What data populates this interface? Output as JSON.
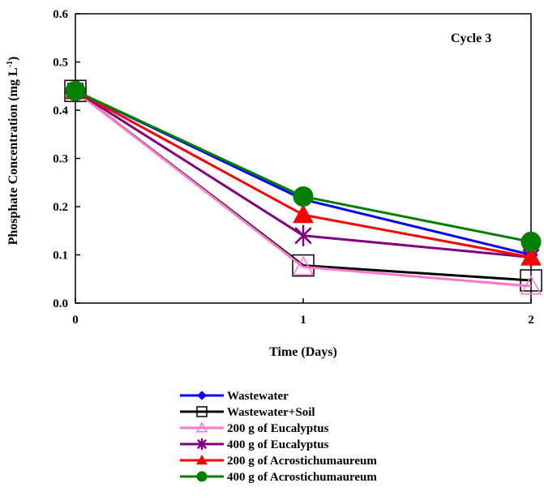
{
  "chart_data": {
    "type": "line",
    "title": "",
    "annotation": "Cycle 3",
    "xlabel": "Time (Days)",
    "ylabel": "Phosphate Concentration (mg L-1)",
    "ylabel_main": "Phosphate Concentration (mg L",
    "ylabel_sup": "-1",
    "ylabel_end": ")",
    "x": [
      0,
      1,
      2
    ],
    "xlim": [
      0,
      2
    ],
    "ylim": [
      0,
      0.6
    ],
    "x_ticks": [
      "0",
      "1",
      "2"
    ],
    "y_ticks": [
      "0.0",
      "0.1",
      "0.2",
      "0.3",
      "0.4",
      "0.5",
      "0.6"
    ],
    "grid": false,
    "legend_position": "bottom",
    "series": [
      {
        "name": "Wastewater",
        "values": [
          0.44,
          0.215,
          0.1
        ],
        "color": "#0000ff",
        "marker": "diamond"
      },
      {
        "name": "Wastewater+Soil",
        "values": [
          0.44,
          0.078,
          0.047
        ],
        "color": "#000000",
        "marker": "open-square"
      },
      {
        "name": "200 g of Eucalyptus",
        "values": [
          0.44,
          0.075,
          0.035
        ],
        "color": "#ff77cc",
        "marker": "open-triangle"
      },
      {
        "name": "400 g of Eucalyptus",
        "values": [
          0.44,
          0.14,
          0.095
        ],
        "color": "#800080",
        "marker": "asterisk"
      },
      {
        "name": "200 g of Acrostichumaureum",
        "values": [
          0.44,
          0.183,
          0.095
        ],
        "color": "#ff0000",
        "marker": "filled-triangle"
      },
      {
        "name": "400 g of Acrostichumaureum",
        "values": [
          0.44,
          0.221,
          0.127
        ],
        "color": "#008000",
        "marker": "filled-circle"
      }
    ]
  }
}
